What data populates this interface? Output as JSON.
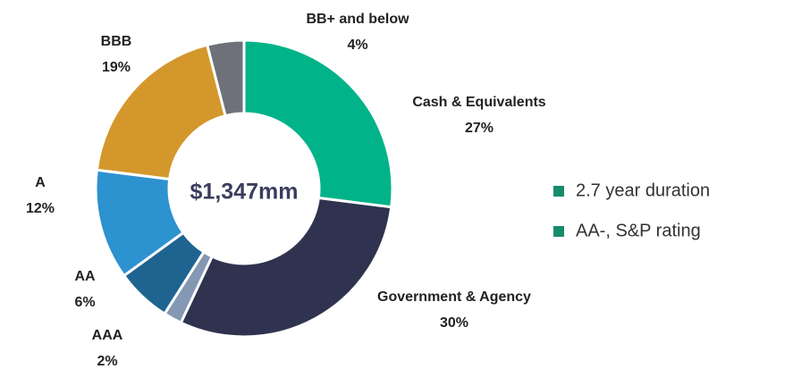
{
  "chart_data": {
    "type": "donut",
    "center_label": "$1,347mm",
    "categories": [
      "Cash & Equivalents",
      "Government & Agency",
      "AAA",
      "AA",
      "A",
      "BBB",
      "BB+ and below"
    ],
    "values": [
      27,
      30,
      2,
      6,
      12,
      19,
      4
    ],
    "value_labels": [
      "27%",
      "30%",
      "2%",
      "6%",
      "12%",
      "19%",
      "4%"
    ],
    "colors": [
      "#00b388",
      "#2f3350",
      "#8497b3",
      "#1f6491",
      "#2d92d0",
      "#d4972b",
      "#6e7179"
    ],
    "notes": [
      "2.7 year duration",
      "AA-, S&P rating"
    ],
    "note_color": "#178c6c"
  }
}
